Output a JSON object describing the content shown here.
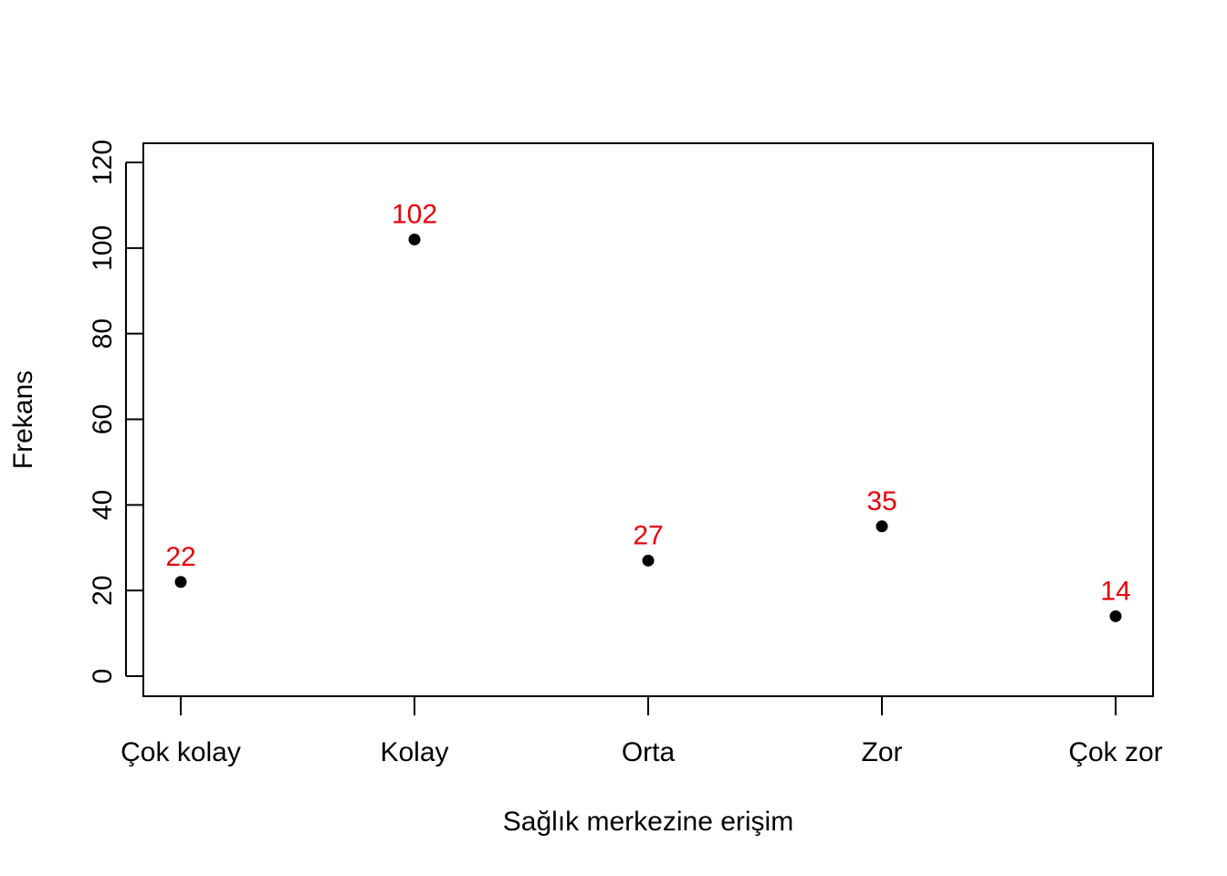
{
  "chart_data": {
    "type": "scatter",
    "categories": [
      "Çok kolay",
      "Kolay",
      "Orta",
      "Zor",
      "Çok zor"
    ],
    "values": [
      22,
      102,
      27,
      35,
      14
    ],
    "data_labels": [
      "22",
      "102",
      "27",
      "35",
      "14"
    ],
    "title": "",
    "xlabel": "Sağlık merkezine erişim",
    "ylabel": "Frekans",
    "ylim": [
      0,
      120
    ],
    "yticks": [
      "0",
      "20",
      "40",
      "60",
      "80",
      "100",
      "120"
    ],
    "grid": false,
    "legend": "none",
    "colors": {
      "points": "#000000",
      "data_labels": "#e8000b",
      "axes": "#000000"
    }
  }
}
